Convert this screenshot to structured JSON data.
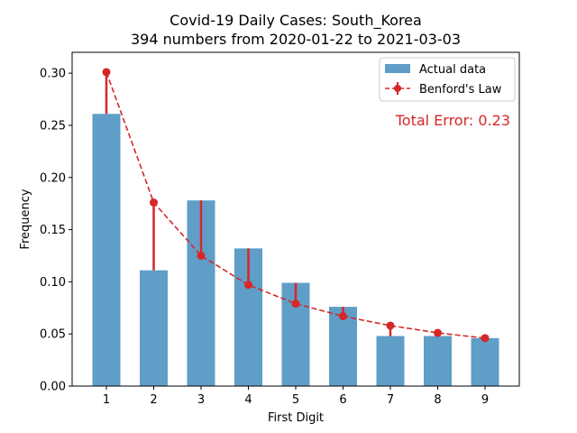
{
  "chart_data": {
    "type": "bar",
    "title_line1": "Covid-19 Daily Cases: South_Korea",
    "title_line2": "394 numbers from 2020-01-22 to 2021-03-03",
    "xlabel": "First Digit",
    "ylabel": "Frequency",
    "categories": [
      "1",
      "2",
      "3",
      "4",
      "5",
      "6",
      "7",
      "8",
      "9"
    ],
    "series": [
      {
        "name": "Actual data",
        "kind": "bar",
        "color": "#5f9ec7",
        "values": [
          0.261,
          0.111,
          0.178,
          0.132,
          0.099,
          0.076,
          0.048,
          0.048,
          0.046
        ]
      },
      {
        "name": "Benford's Law",
        "kind": "line-dashed-markers",
        "color": "#d62728",
        "values": [
          0.301,
          0.176,
          0.125,
          0.097,
          0.079,
          0.067,
          0.058,
          0.051,
          0.046
        ]
      }
    ],
    "ylim": [
      0.0,
      0.32
    ],
    "yticks": [
      "0.00",
      "0.05",
      "0.10",
      "0.15",
      "0.20",
      "0.25",
      "0.30"
    ],
    "annotation": "Total Error: 0.23",
    "legend_position": "top-right",
    "grid": false
  }
}
